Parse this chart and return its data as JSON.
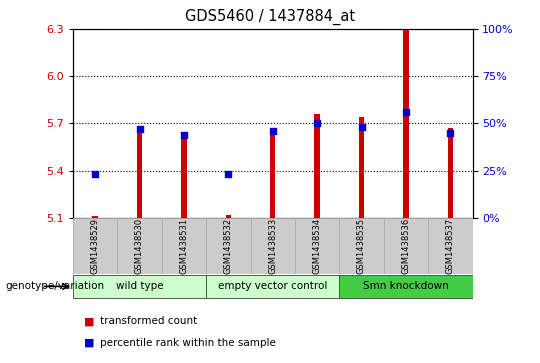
{
  "title": "GDS5460 / 1437884_at",
  "samples": [
    "GSM1438529",
    "GSM1438530",
    "GSM1438531",
    "GSM1438532",
    "GSM1438533",
    "GSM1438534",
    "GSM1438535",
    "GSM1438536",
    "GSM1438537"
  ],
  "transformed_count": [
    5.11,
    5.67,
    5.63,
    5.12,
    5.67,
    5.76,
    5.74,
    6.3,
    5.67
  ],
  "percentile_rank": [
    23,
    47,
    44,
    23,
    46,
    50,
    48,
    56,
    45
  ],
  "bar_bottom": 5.1,
  "ylim_left": [
    5.1,
    6.3
  ],
  "ylim_right": [
    0,
    100
  ],
  "yticks_left": [
    5.1,
    5.4,
    5.7,
    6.0,
    6.3
  ],
  "yticks_right": [
    0,
    25,
    50,
    75,
    100
  ],
  "bar_color": "#cc0000",
  "dot_color": "#0000cc",
  "grid_color": "#000000",
  "groups": [
    {
      "label": "wild type",
      "start": 0,
      "end": 3,
      "color": "#ccffcc"
    },
    {
      "label": "empty vector control",
      "start": 3,
      "end": 6,
      "color": "#ccffcc"
    },
    {
      "label": "Smn knockdown",
      "start": 6,
      "end": 9,
      "color": "#44cc44"
    }
  ],
  "group_label_prefix": "genotype/variation",
  "legend_items": [
    {
      "label": "transformed count",
      "color": "#cc0000"
    },
    {
      "label": "percentile rank within the sample",
      "color": "#0000cc"
    }
  ],
  "bar_width": 0.12,
  "tick_label_color_left": "#cc0000",
  "tick_label_color_right": "#0000cc",
  "bg_color": "#ffffff",
  "plot_bg_color": "#ffffff",
  "xtick_bg_color": "#cccccc",
  "figure_width": 5.4,
  "figure_height": 3.63,
  "dpi": 100
}
